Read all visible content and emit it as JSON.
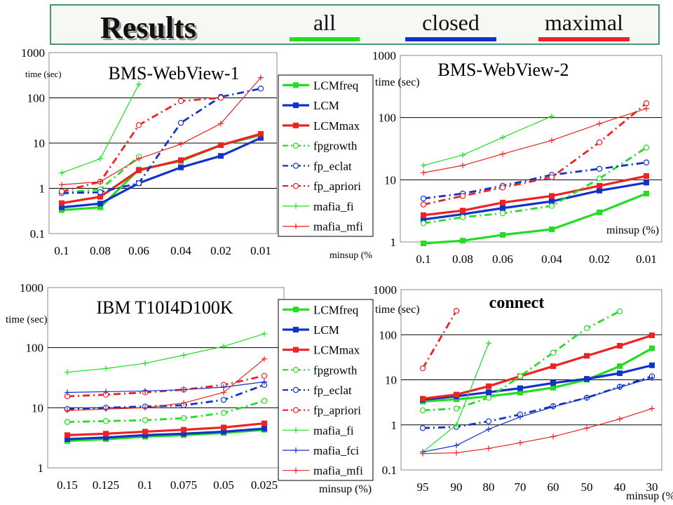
{
  "header": {
    "title": "Results",
    "key": [
      {
        "label": "all",
        "color": "#22dd22"
      },
      {
        "label": "closed",
        "color": "#1133cc"
      },
      {
        "label": "maximal",
        "color": "#ee2222"
      }
    ]
  },
  "chart_data": [
    {
      "type": "line",
      "title": "BMS-WebView-1",
      "ylabel": "time (sec)",
      "xlabel": "minsup (%",
      "y_scale": "log",
      "ylim": [
        0.1,
        1000
      ],
      "grid": "horizontal",
      "legend_position": "right",
      "categories": [
        "0.1",
        "0.08",
        "0.06",
        "0.04",
        "0.02",
        "0.01"
      ],
      "y_tick_labels": [
        "0.1",
        "1",
        "10",
        "100",
        "1000"
      ],
      "series": [
        {
          "name": "LCMfreq",
          "values": [
            0.33,
            0.38,
            2.6,
            4.0,
            9,
            15
          ],
          "color": "#22dd22",
          "style": "solid-thick",
          "marker": "square"
        },
        {
          "name": "LCM",
          "values": [
            0.38,
            0.46,
            1.3,
            2.9,
            5.2,
            13
          ],
          "color": "#1133cc",
          "style": "solid-thick",
          "marker": "square"
        },
        {
          "name": "LCMmax",
          "values": [
            0.47,
            0.65,
            2.5,
            4.2,
            9,
            16
          ],
          "color": "#ee2222",
          "style": "solid-thick",
          "marker": "square"
        },
        {
          "name": "fpgrowth",
          "values": [
            0.8,
            0.95,
            5,
            null,
            null,
            null
          ],
          "color": "#22dd22",
          "style": "dashdot",
          "marker": "circle"
        },
        {
          "name": "fp_eclat",
          "values": [
            0.78,
            0.82,
            1.3,
            28,
            105,
            160
          ],
          "color": "#1133cc",
          "style": "dashdot",
          "marker": "circle"
        },
        {
          "name": "fp_apriori",
          "values": [
            0.85,
            1.4,
            25,
            85,
            100,
            null
          ],
          "color": "#ee2222",
          "style": "dashdot",
          "marker": "circle"
        },
        {
          "name": "mafia_fi",
          "values": [
            2.2,
            4.5,
            200,
            null,
            null,
            null
          ],
          "color": "#22dd22",
          "style": "thin",
          "marker": "plus"
        },
        {
          "name": "mafia_mfi",
          "values": [
            1.2,
            1.4,
            4.5,
            9.5,
            27,
            280
          ],
          "color": "#ee2222",
          "style": "thin",
          "marker": "plus"
        }
      ]
    },
    {
      "type": "line",
      "title": "BMS-WebView-2",
      "ylabel": "time (sec)",
      "xlabel": "minsup (%)",
      "y_scale": "log",
      "ylim": [
        1,
        1000
      ],
      "grid": "horizontal",
      "legend_position": "none",
      "categories": [
        "0.1",
        "0.08",
        "0.06",
        "0.04",
        "0.02",
        "0.01"
      ],
      "y_tick_labels": [
        "1",
        "10",
        "100",
        "1000"
      ],
      "series": [
        {
          "name": "LCMfreq",
          "values": [
            0.95,
            1.05,
            1.3,
            1.6,
            3.0,
            6.0
          ],
          "color": "#22dd22",
          "style": "solid-thick",
          "marker": "square"
        },
        {
          "name": "LCM",
          "values": [
            2.3,
            2.8,
            3.5,
            4.5,
            6.7,
            9.0
          ],
          "color": "#1133cc",
          "style": "solid-thick",
          "marker": "square"
        },
        {
          "name": "LCMmax",
          "values": [
            2.7,
            3.2,
            4.3,
            5.5,
            8.0,
            11.5
          ],
          "color": "#ee2222",
          "style": "solid-thick",
          "marker": "square"
        },
        {
          "name": "fpgrowth",
          "values": [
            2.0,
            2.5,
            2.9,
            3.8,
            10.5,
            33
          ],
          "color": "#22dd22",
          "style": "dashdot",
          "marker": "circle"
        },
        {
          "name": "fp_eclat",
          "values": [
            5.0,
            6.0,
            8.0,
            12,
            15,
            19
          ],
          "color": "#1133cc",
          "style": "dashdot",
          "marker": "circle"
        },
        {
          "name": "fp_apriori",
          "values": [
            4.0,
            5.5,
            7.5,
            11,
            40,
            170
          ],
          "color": "#ee2222",
          "style": "dashdot",
          "marker": "circle"
        },
        {
          "name": "mafia_fi",
          "values": [
            17,
            25,
            48,
            105,
            null,
            null
          ],
          "color": "#22dd22",
          "style": "thin",
          "marker": "plus"
        },
        {
          "name": "mafia_mfi",
          "values": [
            13,
            17,
            26,
            43,
            80,
            140
          ],
          "color": "#ee2222",
          "style": "thin",
          "marker": "plus"
        }
      ]
    },
    {
      "type": "line",
      "title": "IBM T10I4D100K",
      "ylabel": "time (sec)",
      "xlabel": "minsup (%)",
      "y_scale": "log",
      "ylim": [
        1,
        1000
      ],
      "grid": "horizontal",
      "legend_position": "right",
      "categories": [
        "0.15",
        "0.125",
        "0.1",
        "0.075",
        "0.05",
        "0.025"
      ],
      "y_tick_labels": [
        "1",
        "10",
        "100",
        "1000"
      ],
      "series": [
        {
          "name": "LCMfreq",
          "values": [
            2.8,
            3.0,
            3.3,
            3.5,
            3.8,
            4.3
          ],
          "color": "#22dd22",
          "style": "solid-thick",
          "marker": "square"
        },
        {
          "name": "LCM",
          "values": [
            3.0,
            3.2,
            3.5,
            3.7,
            4.0,
            4.5
          ],
          "color": "#1133cc",
          "style": "solid-thick",
          "marker": "square"
        },
        {
          "name": "LCMmax",
          "values": [
            3.5,
            3.7,
            4.0,
            4.3,
            4.7,
            5.5
          ],
          "color": "#ee2222",
          "style": "solid-thick",
          "marker": "square"
        },
        {
          "name": "fpgrowth",
          "values": [
            5.8,
            6.0,
            6.2,
            6.7,
            8.2,
            13
          ],
          "color": "#22dd22",
          "style": "dashdot",
          "marker": "circle"
        },
        {
          "name": "fp_eclat",
          "values": [
            9.5,
            10,
            10.5,
            11,
            13.5,
            24
          ],
          "color": "#1133cc",
          "style": "dashdot",
          "marker": "circle"
        },
        {
          "name": "fp_apriori",
          "values": [
            15.5,
            16.5,
            18,
            20,
            24,
            34
          ],
          "color": "#ee2222",
          "style": "dashdot",
          "marker": "circle"
        },
        {
          "name": "mafia_fi",
          "values": [
            39,
            45,
            55,
            75,
            105,
            170
          ],
          "color": "#22dd22",
          "style": "thin",
          "marker": "plus"
        },
        {
          "name": "mafia_fci",
          "values": [
            18,
            18.5,
            19,
            20,
            22,
            27
          ],
          "color": "#1133cc",
          "style": "thin",
          "marker": "plus"
        },
        {
          "name": "mafia_mfi",
          "values": [
            9,
            9.5,
            10,
            12,
            18,
            65
          ],
          "color": "#ee2222",
          "style": "thin",
          "marker": "plus"
        }
      ]
    },
    {
      "type": "line",
      "title": "connect",
      "ylabel": "time (sec)",
      "xlabel": "minsup (%)",
      "y_scale": "log",
      "ylim": [
        0.1,
        1000
      ],
      "grid": "horizontal",
      "legend_position": "none",
      "categories": [
        "95",
        "90",
        "80",
        "70",
        "60",
        "50",
        "40",
        "30"
      ],
      "y_tick_labels": [
        "0.1",
        "1",
        "10",
        "100",
        "1000"
      ],
      "series": [
        {
          "name": "LCMfreq",
          "values": [
            3.3,
            3.7,
            4.3,
            5.2,
            6.7,
            10,
            20,
            50
          ],
          "color": "#22dd22",
          "style": "solid-thick",
          "marker": "square"
        },
        {
          "name": "LCM",
          "values": [
            3.6,
            4.3,
            5.3,
            6.5,
            8.5,
            10.5,
            14,
            21
          ],
          "color": "#1133cc",
          "style": "solid-thick",
          "marker": "square"
        },
        {
          "name": "LCMmax",
          "values": [
            3.8,
            4.7,
            7.2,
            12,
            20,
            34,
            57,
            97
          ],
          "color": "#ee2222",
          "style": "solid-thick",
          "marker": "square"
        },
        {
          "name": "fpgrowth",
          "values": [
            2.1,
            2.3,
            4.0,
            12,
            40,
            140,
            330,
            null
          ],
          "color": "#22dd22",
          "style": "dashdot",
          "marker": "circle"
        },
        {
          "name": "fp_eclat",
          "values": [
            0.85,
            0.9,
            1.2,
            1.7,
            2.6,
            4.0,
            7.0,
            12
          ],
          "color": "#1133cc",
          "style": "dashdot",
          "marker": "circle"
        },
        {
          "name": "fp_apriori",
          "values": [
            18,
            340,
            null,
            null,
            null,
            null,
            null,
            null
          ],
          "color": "#ee2222",
          "style": "dashdot",
          "marker": "circle"
        },
        {
          "name": "mafia_fi",
          "values": [
            0.25,
            1.0,
            65,
            null,
            null,
            null,
            null,
            null
          ],
          "color": "#22dd22",
          "style": "thin",
          "marker": "plus"
        },
        {
          "name": "mafia_fci",
          "values": [
            0.25,
            0.35,
            0.8,
            1.5,
            2.5,
            4.0,
            6.8,
            11
          ],
          "color": "#1133cc",
          "style": "thin",
          "marker": "plus"
        },
        {
          "name": "mafia_mfi",
          "values": [
            0.23,
            0.24,
            0.3,
            0.4,
            0.55,
            0.85,
            1.35,
            2.3
          ],
          "color": "#ee2222",
          "style": "thin",
          "marker": "plus"
        }
      ]
    }
  ]
}
